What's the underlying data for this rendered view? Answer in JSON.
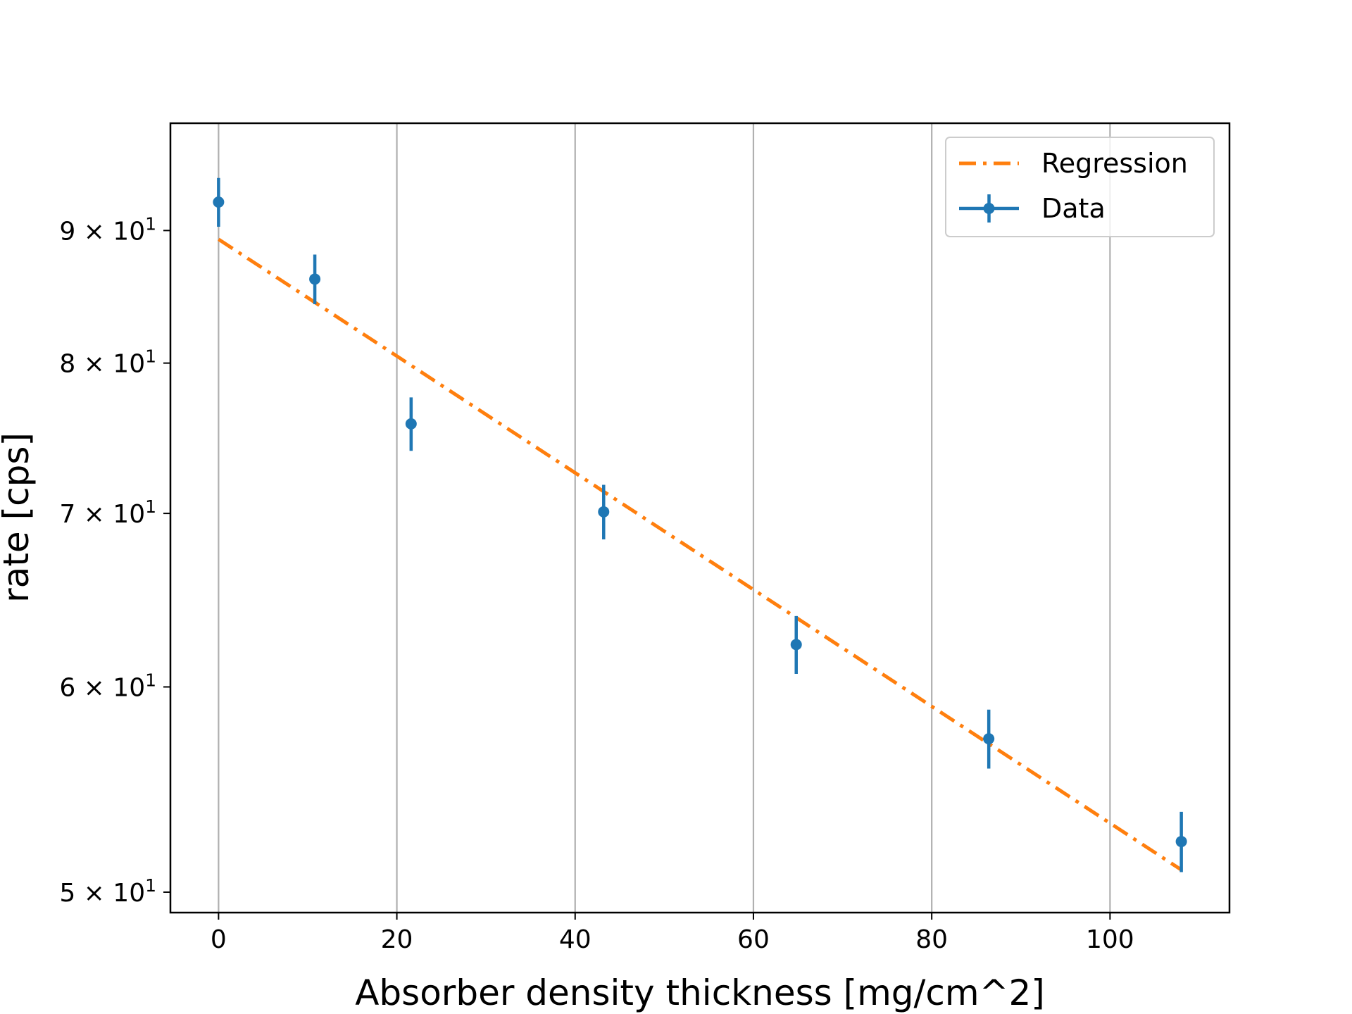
{
  "chart_data": {
    "type": "scatter",
    "title": "",
    "xlabel": "Absorber density thickness [mg/cm^2]",
    "ylabel": "rate [cps]",
    "xlim": [
      -5.4,
      113.4
    ],
    "ylim": [
      49.1,
      99.0
    ],
    "yscale": "log",
    "grid": "x-major",
    "legend_position": "top-right",
    "x_ticks": [
      0,
      20,
      40,
      60,
      80,
      100
    ],
    "x_tick_labels": [
      "0",
      "20",
      "40",
      "60",
      "80",
      "100"
    ],
    "y_ticks": [
      50,
      60,
      70,
      80,
      90
    ],
    "y_tick_labels": [
      {
        "mantissa": "5",
        "times": "×",
        "base": "10",
        "exp": "1"
      },
      {
        "mantissa": "6",
        "times": "×",
        "base": "10",
        "exp": "1"
      },
      {
        "mantissa": "7",
        "times": "×",
        "base": "10",
        "exp": "1"
      },
      {
        "mantissa": "8",
        "times": "×",
        "base": "10",
        "exp": "1"
      },
      {
        "mantissa": "9",
        "times": "×",
        "base": "10",
        "exp": "1"
      }
    ],
    "series": [
      {
        "name": "Regression",
        "kind": "line",
        "color": "#ff7f0e",
        "style": "dash-dot",
        "x": [
          0,
          108
        ],
        "y": [
          89.3,
          51.0
        ]
      },
      {
        "name": "Data",
        "kind": "errorbar",
        "color": "#1f77b4",
        "x": [
          0,
          10.8,
          21.6,
          43.2,
          64.8,
          86.4,
          108
        ],
        "y": [
          92.3,
          86.2,
          75.8,
          70.1,
          62.3,
          57.3,
          52.3
        ],
        "yerr": [
          2.0,
          1.9,
          1.8,
          1.7,
          1.6,
          1.5,
          1.4
        ]
      }
    ]
  }
}
